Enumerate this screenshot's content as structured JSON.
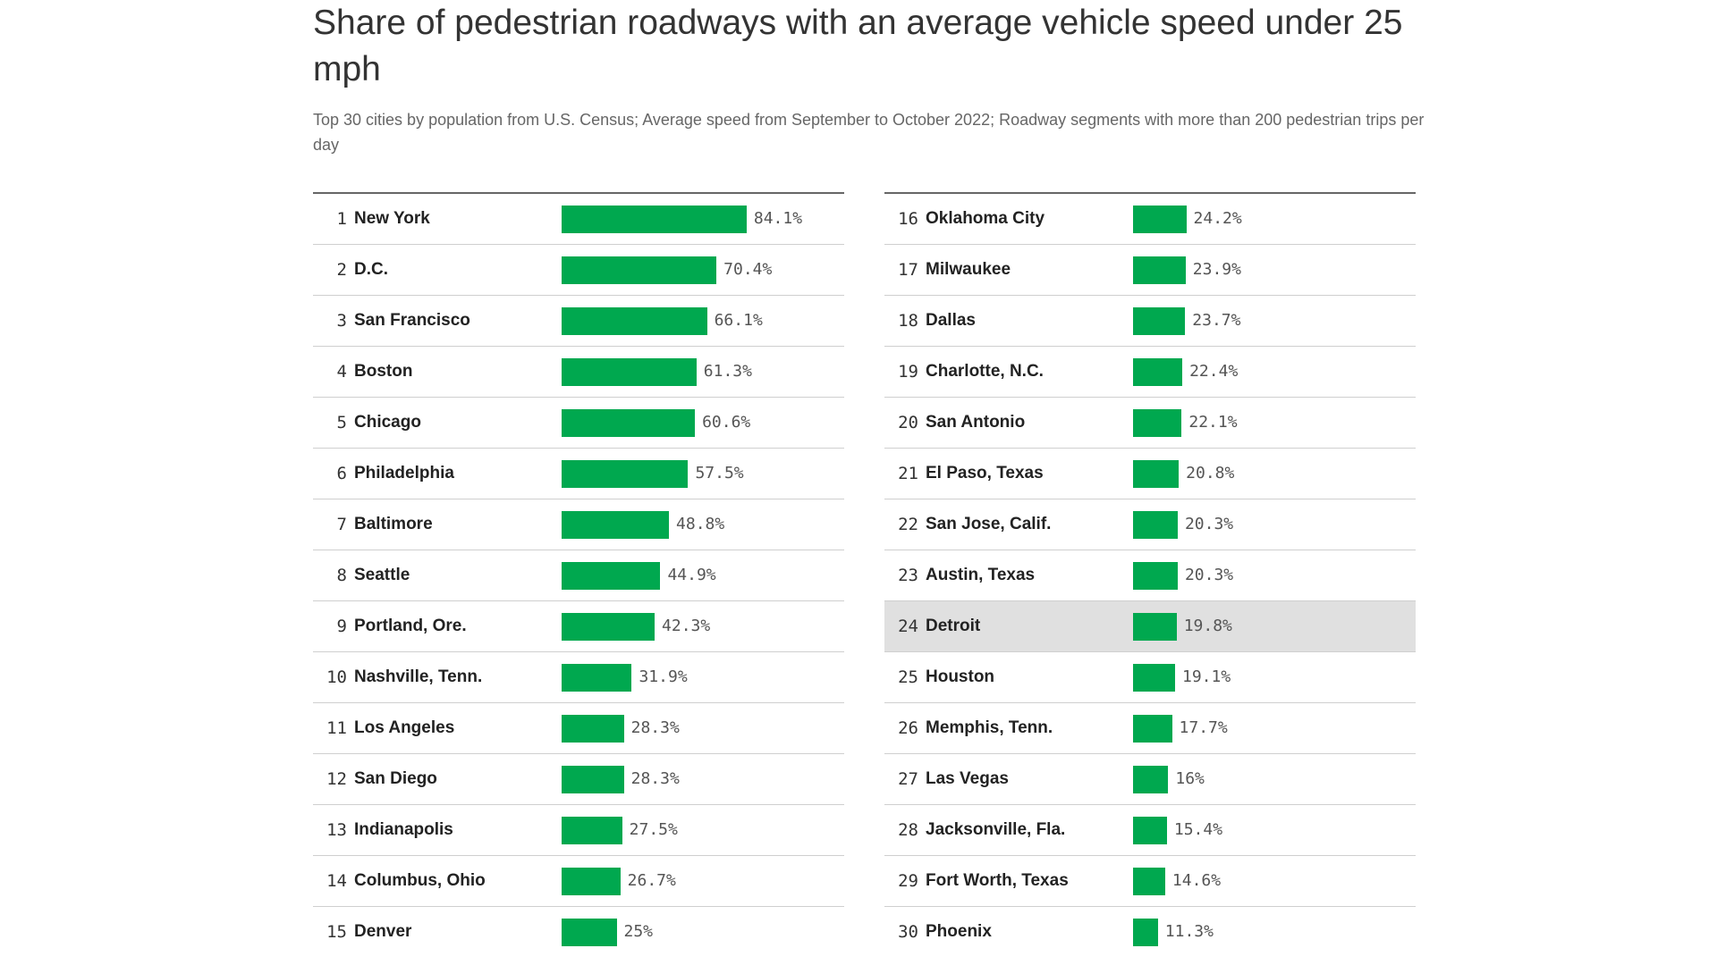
{
  "chart_data": {
    "type": "bar",
    "title": "Share of pedestrian roadways with an average vehicle speed under 25 mph",
    "subtitle": "Top 30 cities by population from U.S. Census; Average speed from September to October 2022; Roadway segments with more than 200 pedestrian trips per day",
    "bar_color": "#00a84f",
    "highlight_color": "#e0e0e0",
    "highlighted_rank": 24,
    "rows": [
      {
        "rank": "1",
        "city": "New York",
        "value": 84.1,
        "label": "84.1%"
      },
      {
        "rank": "2",
        "city": "D.C.",
        "value": 70.4,
        "label": "70.4%"
      },
      {
        "rank": "3",
        "city": "San Francisco",
        "value": 66.1,
        "label": "66.1%"
      },
      {
        "rank": "4",
        "city": "Boston",
        "value": 61.3,
        "label": "61.3%"
      },
      {
        "rank": "5",
        "city": "Chicago",
        "value": 60.6,
        "label": "60.6%"
      },
      {
        "rank": "6",
        "city": "Philadelphia",
        "value": 57.5,
        "label": "57.5%"
      },
      {
        "rank": "7",
        "city": "Baltimore",
        "value": 48.8,
        "label": "48.8%"
      },
      {
        "rank": "8",
        "city": "Seattle",
        "value": 44.9,
        "label": "44.9%"
      },
      {
        "rank": "9",
        "city": "Portland, Ore.",
        "value": 42.3,
        "label": "42.3%"
      },
      {
        "rank": "10",
        "city": "Nashville, Tenn.",
        "value": 31.9,
        "label": "31.9%"
      },
      {
        "rank": "11",
        "city": "Los Angeles",
        "value": 28.3,
        "label": "28.3%"
      },
      {
        "rank": "12",
        "city": "San Diego",
        "value": 28.3,
        "label": "28.3%"
      },
      {
        "rank": "13",
        "city": "Indianapolis",
        "value": 27.5,
        "label": "27.5%"
      },
      {
        "rank": "14",
        "city": "Columbus, Ohio",
        "value": 26.7,
        "label": "26.7%"
      },
      {
        "rank": "15",
        "city": "Denver",
        "value": 25,
        "label": "25%"
      },
      {
        "rank": "16",
        "city": "Oklahoma City",
        "value": 24.2,
        "label": "24.2%"
      },
      {
        "rank": "17",
        "city": "Milwaukee",
        "value": 23.9,
        "label": "23.9%"
      },
      {
        "rank": "18",
        "city": "Dallas",
        "value": 23.7,
        "label": "23.7%"
      },
      {
        "rank": "19",
        "city": "Charlotte, N.C.",
        "value": 22.4,
        "label": "22.4%"
      },
      {
        "rank": "20",
        "city": "San Antonio",
        "value": 22.1,
        "label": "22.1%"
      },
      {
        "rank": "21",
        "city": "El Paso, Texas",
        "value": 20.8,
        "label": "20.8%"
      },
      {
        "rank": "22",
        "city": "San Jose, Calif.",
        "value": 20.3,
        "label": "20.3%"
      },
      {
        "rank": "23",
        "city": "Austin, Texas",
        "value": 20.3,
        "label": "20.3%"
      },
      {
        "rank": "24",
        "city": "Detroit",
        "value": 19.8,
        "label": "19.8%"
      },
      {
        "rank": "25",
        "city": "Houston",
        "value": 19.1,
        "label": "19.1%"
      },
      {
        "rank": "26",
        "city": "Memphis, Tenn.",
        "value": 17.7,
        "label": "17.7%"
      },
      {
        "rank": "27",
        "city": "Las Vegas",
        "value": 16,
        "label": "16%"
      },
      {
        "rank": "28",
        "city": "Jacksonville, Fla.",
        "value": 15.4,
        "label": "15.4%"
      },
      {
        "rank": "29",
        "city": "Fort Worth, Texas",
        "value": 14.6,
        "label": "14.6%"
      },
      {
        "rank": "30",
        "city": "Phoenix",
        "value": 11.3,
        "label": "11.3%"
      }
    ]
  }
}
